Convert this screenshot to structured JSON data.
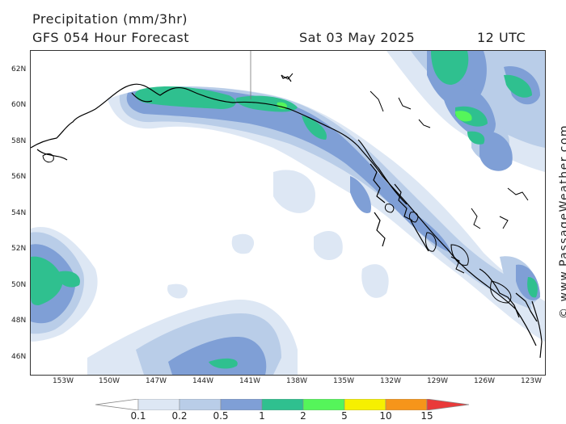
{
  "header": {
    "title": "Precipitation (mm/3hr)",
    "subtitle": "GFS 054 Hour Forecast",
    "date": "Sat 03 May 2025",
    "time": "12 UTC"
  },
  "credit": "© www.PassageWeather.com",
  "axes": {
    "lat_labels": [
      "62N",
      "60N",
      "58N",
      "56N",
      "54N",
      "52N",
      "50N",
      "48N",
      "46N"
    ],
    "lon_labels": [
      "153W",
      "150W",
      "147W",
      "144W",
      "141W",
      "138W",
      "135W",
      "132W",
      "129W",
      "126W",
      "123W"
    ]
  },
  "legend": {
    "labels": [
      "0.1",
      "0.2",
      "0.5",
      "1",
      "2",
      "5",
      "10",
      "15"
    ],
    "colors": [
      "#dde7f4",
      "#b9cde8",
      "#7f9fd6",
      "#2fc08f",
      "#55f55a",
      "#f6f000",
      "#f6951a",
      "#e93a3a"
    ]
  },
  "colors": {
    "level1": "#dde7f4",
    "level2": "#b9cde8",
    "level3": "#7f9fd6",
    "level4": "#2fc08f",
    "level5": "#55f55a",
    "coast": "#000000"
  }
}
